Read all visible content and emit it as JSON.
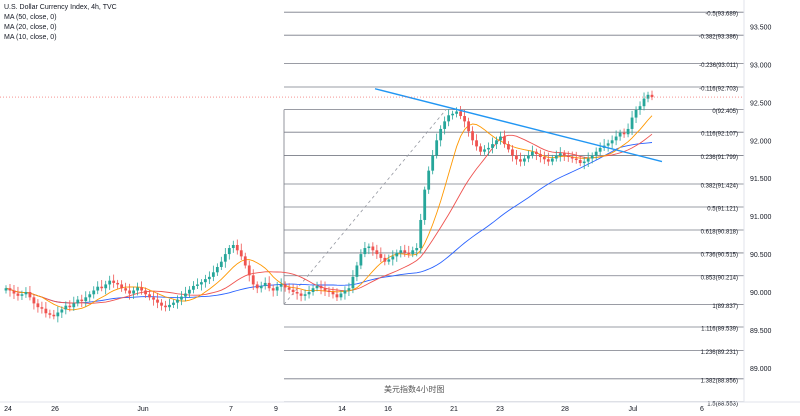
{
  "legend": {
    "title": "U.S. Dollar Currency Index, 4h, TVC",
    "ma50": "MA (50, close, 0)",
    "ma20": "MA (20, close, 0)",
    "ma10": "MA (10, close, 0)"
  },
  "caption": "美元指数4小时图",
  "chart_data": {
    "type": "candlestick",
    "title": "U.S. Dollar Currency Index, 4h, TVC",
    "ylim": [
      88.55,
      93.85
    ],
    "y_ticks": [
      "93.500",
      "93.000",
      "92.500",
      "92.000",
      "91.500",
      "91.000",
      "90.500",
      "90.000",
      "89.500",
      "89.000"
    ],
    "x_ticks": [
      "24",
      "26",
      "Jun",
      "7",
      "9",
      "14",
      "16",
      "21",
      "23",
      "28",
      "Jul",
      "6"
    ],
    "last_price": 92.57,
    "colors": {
      "up": "#26a69a",
      "down": "#ef5350",
      "ma50": "#2962ff",
      "ma20": "#ef5350",
      "ma10": "#ff9800",
      "trend": "#2196f3",
      "fib": "#787b86"
    },
    "fibonacci": [
      {
        "label": "-0.5(93.689)",
        "value": 93.689
      },
      {
        "label": "-0.382(93.386)",
        "value": 93.386
      },
      {
        "label": "-0.236(93.011)",
        "value": 93.011
      },
      {
        "label": "-0.116(92.703)",
        "value": 92.703
      },
      {
        "label": "0(92.405)",
        "value": 92.405
      },
      {
        "label": "0.116(92.107)",
        "value": 92.107
      },
      {
        "label": "0.236(91.799)",
        "value": 91.799
      },
      {
        "label": "0.382(91.424)",
        "value": 91.424
      },
      {
        "label": "0.5(91.121)",
        "value": 91.121
      },
      {
        "label": "0.618(90.818)",
        "value": 90.818
      },
      {
        "label": "0.736(90.515)",
        "value": 90.515
      },
      {
        "label": "0.853(90.214)",
        "value": 90.214
      },
      {
        "label": "1(89.837)",
        "value": 89.837
      },
      {
        "label": "1.116(89.539)",
        "value": 89.539
      },
      {
        "label": "1.236(89.231)",
        "value": 89.231
      },
      {
        "label": "1.382(88.856)",
        "value": 88.856
      },
      {
        "label": "1.5(88.553)",
        "value": 88.553
      }
    ],
    "closes": [
      90.05,
      90.02,
      89.98,
      89.95,
      89.97,
      90.0,
      89.93,
      89.85,
      89.8,
      89.78,
      89.72,
      89.7,
      89.68,
      89.73,
      89.77,
      89.82,
      89.8,
      89.85,
      89.9,
      89.88,
      89.93,
      89.97,
      90.02,
      90.07,
      90.05,
      90.1,
      90.15,
      90.12,
      90.1,
      90.05,
      90.02,
      89.98,
      90.02,
      90.06,
      90.02,
      89.97,
      89.93,
      89.9,
      89.86,
      89.82,
      89.8,
      89.83,
      89.86,
      89.9,
      89.94,
      89.98,
      90.03,
      90.08,
      90.1,
      90.13,
      90.17,
      90.2,
      90.26,
      90.33,
      90.4,
      90.5,
      90.58,
      90.62,
      90.55,
      90.47,
      90.35,
      90.22,
      90.1,
      90.05,
      90.08,
      90.12,
      90.05,
      90.02,
      90.07,
      90.1,
      90.06,
      90.03,
      90.0,
      89.98,
      89.95,
      89.97,
      90.0,
      90.05,
      90.08,
      90.05,
      90.02,
      90.0,
      89.97,
      89.93,
      89.98,
      90.02,
      90.05,
      90.2,
      90.35,
      90.5,
      90.58,
      90.6,
      90.55,
      90.5,
      90.45,
      90.4,
      90.43,
      90.47,
      90.52,
      90.55,
      90.52,
      90.5,
      90.55,
      90.58,
      90.95,
      91.35,
      91.6,
      91.8,
      92.0,
      92.15,
      92.25,
      92.33,
      92.35,
      92.38,
      92.32,
      92.25,
      92.12,
      92.0,
      91.92,
      91.85,
      91.88,
      91.9,
      91.95,
      92.0,
      92.05,
      91.95,
      91.88,
      91.8,
      91.75,
      91.72,
      91.76,
      91.8,
      91.85,
      91.82,
      91.78,
      91.75,
      91.72,
      91.76,
      91.8,
      91.83,
      91.8,
      91.78,
      91.76,
      91.74,
      91.7,
      91.72,
      91.76,
      91.8,
      91.85,
      91.9,
      91.93,
      91.96,
      92.0,
      92.05,
      92.1,
      92.08,
      92.15,
      92.3,
      92.4,
      92.45,
      92.55,
      92.6,
      92.57
    ]
  }
}
